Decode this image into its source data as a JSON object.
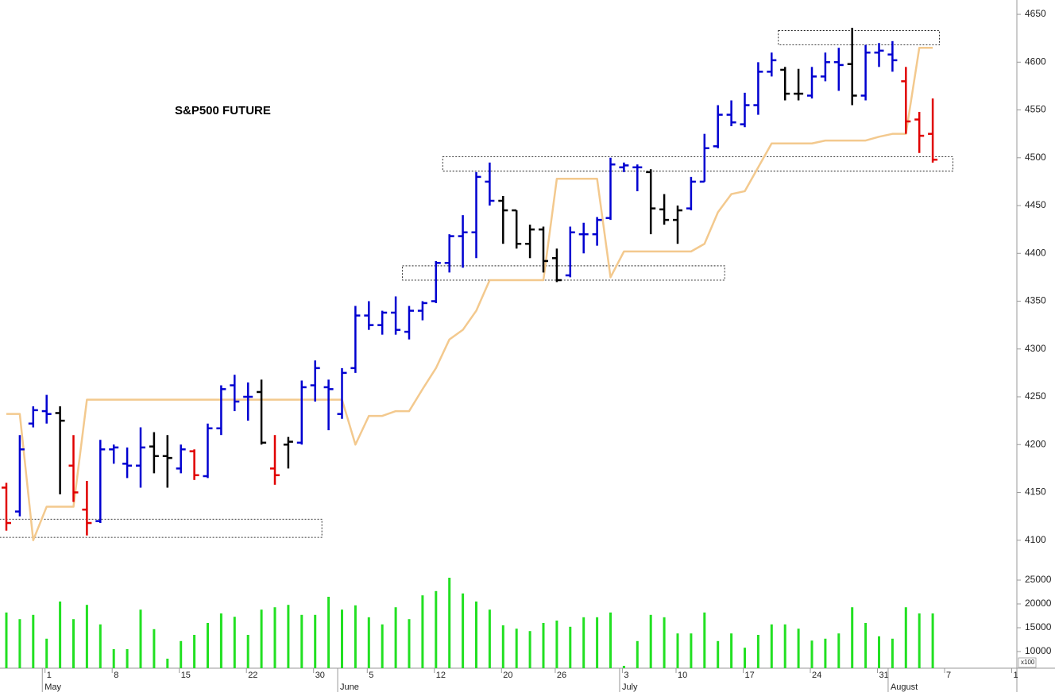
{
  "chart_data": [
    {
      "type": "ohlc",
      "title": "S&P500 FUTURE",
      "categories": [
        null,
        null,
        null,
        "1",
        null,
        null,
        null,
        null,
        "8",
        null,
        null,
        null,
        null,
        "15",
        null,
        null,
        null,
        null,
        "22",
        null,
        null,
        null,
        null,
        "30",
        null,
        null,
        null,
        "5",
        null,
        null,
        null,
        null,
        "12",
        null,
        null,
        null,
        null,
        "20",
        null,
        null,
        null,
        "26",
        null,
        null,
        null,
        null,
        "3",
        null,
        null,
        null,
        "10",
        null,
        null,
        null,
        null,
        "17",
        null,
        null,
        null,
        null,
        "24",
        null,
        null,
        null,
        null,
        "31",
        null,
        null,
        null,
        null,
        "7",
        null,
        null,
        null,
        null,
        "1"
      ],
      "months": [
        null,
        null,
        null,
        "May",
        null,
        null,
        null,
        null,
        null,
        null,
        null,
        null,
        null,
        null,
        null,
        null,
        null,
        null,
        null,
        null,
        null,
        null,
        null,
        null,
        null,
        "June",
        null,
        null,
        null,
        null,
        null,
        null,
        null,
        null,
        null,
        null,
        null,
        null,
        null,
        null,
        null,
        null,
        null,
        null,
        null,
        null,
        "July",
        null,
        null,
        null,
        null,
        null,
        null,
        null,
        null,
        null,
        null,
        null,
        null,
        null,
        null,
        null,
        null,
        null,
        null,
        null,
        "August",
        null,
        null,
        null,
        null,
        null,
        null,
        null,
        null,
        null
      ],
      "open": [
        4155,
        4130,
        4222,
        4235,
        4233,
        4178,
        4132,
        4120,
        4195,
        4180,
        4178,
        4198,
        4188,
        4175,
        4193,
        4167,
        4217,
        4262,
        4250,
        4255,
        4175,
        4200,
        4202,
        4262,
        4260,
        4232,
        4280,
        4335,
        4325,
        4338,
        4318,
        4340,
        4350,
        4390,
        4418,
        4422,
        4475,
        4455,
        4445,
        4410,
        4425,
        4395,
        4377,
        4420,
        4420,
        4437,
        4490,
        4490,
        4485,
        4446,
        4435,
        4447,
        4475,
        4512,
        4545,
        4535,
        4555,
        4590,
        4592,
        4567,
        4565,
        4585,
        4600,
        4598,
        4565,
        4610,
        4608,
        4580,
        4540,
        4525,
        null,
        null,
        null,
        null,
        null,
        null
      ],
      "high": [
        4160,
        4210,
        4240,
        4252,
        4240,
        4210,
        4162,
        4205,
        4200,
        4197,
        4218,
        4213,
        4210,
        4200,
        4195,
        4222,
        4262,
        4273,
        4265,
        4268,
        4210,
        4208,
        4267,
        4288,
        4268,
        4280,
        4345,
        4350,
        4340,
        4355,
        4345,
        4350,
        4392,
        4420,
        4440,
        4485,
        4495,
        4460,
        4445,
        4430,
        4428,
        4405,
        4428,
        4432,
        4438,
        4500,
        4495,
        4493,
        4488,
        4462,
        4450,
        4480,
        4525,
        4555,
        4560,
        4568,
        4600,
        4610,
        4595,
        4593,
        4595,
        4610,
        4615,
        4636,
        4618,
        4620,
        4622,
        4595,
        4548,
        4562,
        null,
        null,
        null,
        null,
        null,
        null
      ],
      "low": [
        4110,
        4125,
        4218,
        4222,
        4148,
        4140,
        4105,
        4118,
        4180,
        4165,
        4155,
        4170,
        4155,
        4170,
        4163,
        4165,
        4210,
        4235,
        4225,
        4200,
        4158,
        4175,
        4200,
        4245,
        4215,
        4227,
        4275,
        4320,
        4315,
        4315,
        4310,
        4330,
        4348,
        4380,
        4385,
        4395,
        4450,
        4410,
        4405,
        4395,
        4380,
        4370,
        4375,
        4400,
        4408,
        4435,
        4485,
        4465,
        4420,
        4430,
        4410,
        4445,
        4475,
        4510,
        4533,
        4532,
        4545,
        4585,
        4560,
        4560,
        4562,
        4580,
        4570,
        4555,
        4560,
        4595,
        4590,
        4525,
        4505,
        4495,
        null,
        null,
        null,
        null,
        null,
        null
      ],
      "close": [
        4118,
        4195,
        4236,
        4232,
        4225,
        4150,
        4118,
        4195,
        4197,
        4178,
        4197,
        4188,
        4186,
        4195,
        4168,
        4217,
        4258,
        4245,
        4250,
        4202,
        4168,
        4203,
        4260,
        4280,
        4258,
        4275,
        4335,
        4325,
        4338,
        4320,
        4340,
        4348,
        4390,
        4418,
        4422,
        4480,
        4455,
        4445,
        4410,
        4425,
        4392,
        4372,
        4422,
        4420,
        4435,
        4493,
        4492,
        4490,
        4447,
        4435,
        4445,
        4475,
        4510,
        4545,
        4537,
        4555,
        4590,
        4602,
        4567,
        4567,
        4585,
        4600,
        4597,
        4565,
        4610,
        4612,
        4602,
        4538,
        4523,
        4498,
        null,
        null,
        null,
        null,
        null,
        null
      ],
      "bar_colors": [
        "#e00000",
        "#0000d0",
        "#0000d0",
        "#0000d0",
        "#000000",
        "#e00000",
        "#e00000",
        "#0000d0",
        "#0000d0",
        "#0000d0",
        "#0000d0",
        "#000000",
        "#000000",
        "#0000d0",
        "#e00000",
        "#0000d0",
        "#0000d0",
        "#0000d0",
        "#0000d0",
        "#000000",
        "#e00000",
        "#000000",
        "#0000d0",
        "#0000d0",
        "#0000d0",
        "#0000d0",
        "#0000d0",
        "#0000d0",
        "#0000d0",
        "#0000d0",
        "#0000d0",
        "#0000d0",
        "#0000d0",
        "#0000d0",
        "#0000d0",
        "#0000d0",
        "#0000d0",
        "#000000",
        "#000000",
        "#000000",
        "#000000",
        "#000000",
        "#0000d0",
        "#0000d0",
        "#0000d0",
        "#0000d0",
        "#0000d0",
        "#0000d0",
        "#000000",
        "#000000",
        "#000000",
        "#0000d0",
        "#0000d0",
        "#0000d0",
        "#0000d0",
        "#0000d0",
        "#0000d0",
        "#0000d0",
        "#000000",
        "#000000",
        "#0000d0",
        "#0000d0",
        "#0000d0",
        "#000000",
        "#0000d0",
        "#0000d0",
        "#0000d0",
        "#e00000",
        "#e00000",
        "#e00000",
        null,
        null,
        null,
        null,
        null,
        null
      ],
      "line": {
        "color": "#f3c98e",
        "values": [
          4232,
          4232,
          4100,
          4135,
          4135,
          4135,
          4247,
          4247,
          4247,
          4247,
          4247,
          4247,
          4247,
          4247,
          4247,
          4247,
          4247,
          4247,
          4247,
          4247,
          4247,
          4247,
          4247,
          4247,
          4247,
          4247,
          4200,
          4230,
          4230,
          4235,
          4235,
          4258,
          4280,
          4310,
          4320,
          4340,
          4372,
          4372,
          4372,
          4372,
          4372,
          4478,
          4478,
          4478,
          4478,
          4375,
          4402,
          4402,
          4402,
          4402,
          4402,
          4402,
          4410,
          4443,
          4462,
          4465,
          4490,
          4515,
          4515,
          4515,
          4515,
          4518,
          4518,
          4518,
          4518,
          4522,
          4525,
          4525,
          4615,
          4615,
          null,
          null,
          null,
          null,
          null,
          null
        ]
      },
      "zones": [
        {
          "start": 0,
          "end": 23,
          "low": 4103,
          "high": 4122
        },
        {
          "start": 30,
          "end": 53,
          "low": 4372,
          "high": 4387
        },
        {
          "start": 33,
          "end": 70,
          "low": 4486,
          "high": 4501
        },
        {
          "start": 58,
          "end": 69,
          "low": 4618,
          "high": 4633
        }
      ],
      "ylim": [
        4084,
        4665
      ],
      "yticks": [
        4100,
        4150,
        4200,
        4250,
        4300,
        4350,
        4400,
        4450,
        4500,
        4550,
        4600,
        4650
      ]
    },
    {
      "type": "bar",
      "unit_label": "x100",
      "color": "#22e022",
      "values": [
        18200,
        16800,
        17700,
        12700,
        20500,
        16800,
        19800,
        15700,
        10500,
        10500,
        18800,
        14700,
        8500,
        12200,
        13500,
        16000,
        18000,
        17300,
        13500,
        18800,
        19300,
        19800,
        17700,
        17700,
        21500,
        18800,
        19700,
        17200,
        15700,
        19300,
        16800,
        21800,
        22700,
        25500,
        22200,
        20500,
        18800,
        15500,
        14800,
        14300,
        16000,
        16500,
        15200,
        17200,
        17200,
        18200,
        7000,
        12200,
        17700,
        17200,
        13800,
        13800,
        18200,
        12200,
        13800,
        10800,
        13500,
        15700,
        15700,
        14800,
        12300,
        12700,
        13800,
        19300,
        16000,
        13200,
        12700,
        19300,
        18000,
        18000,
        null,
        null,
        null,
        null,
        null,
        null
      ],
      "ylim": [
        6500,
        27500
      ],
      "yticks": [
        10000,
        15000,
        20000,
        25000
      ]
    }
  ]
}
